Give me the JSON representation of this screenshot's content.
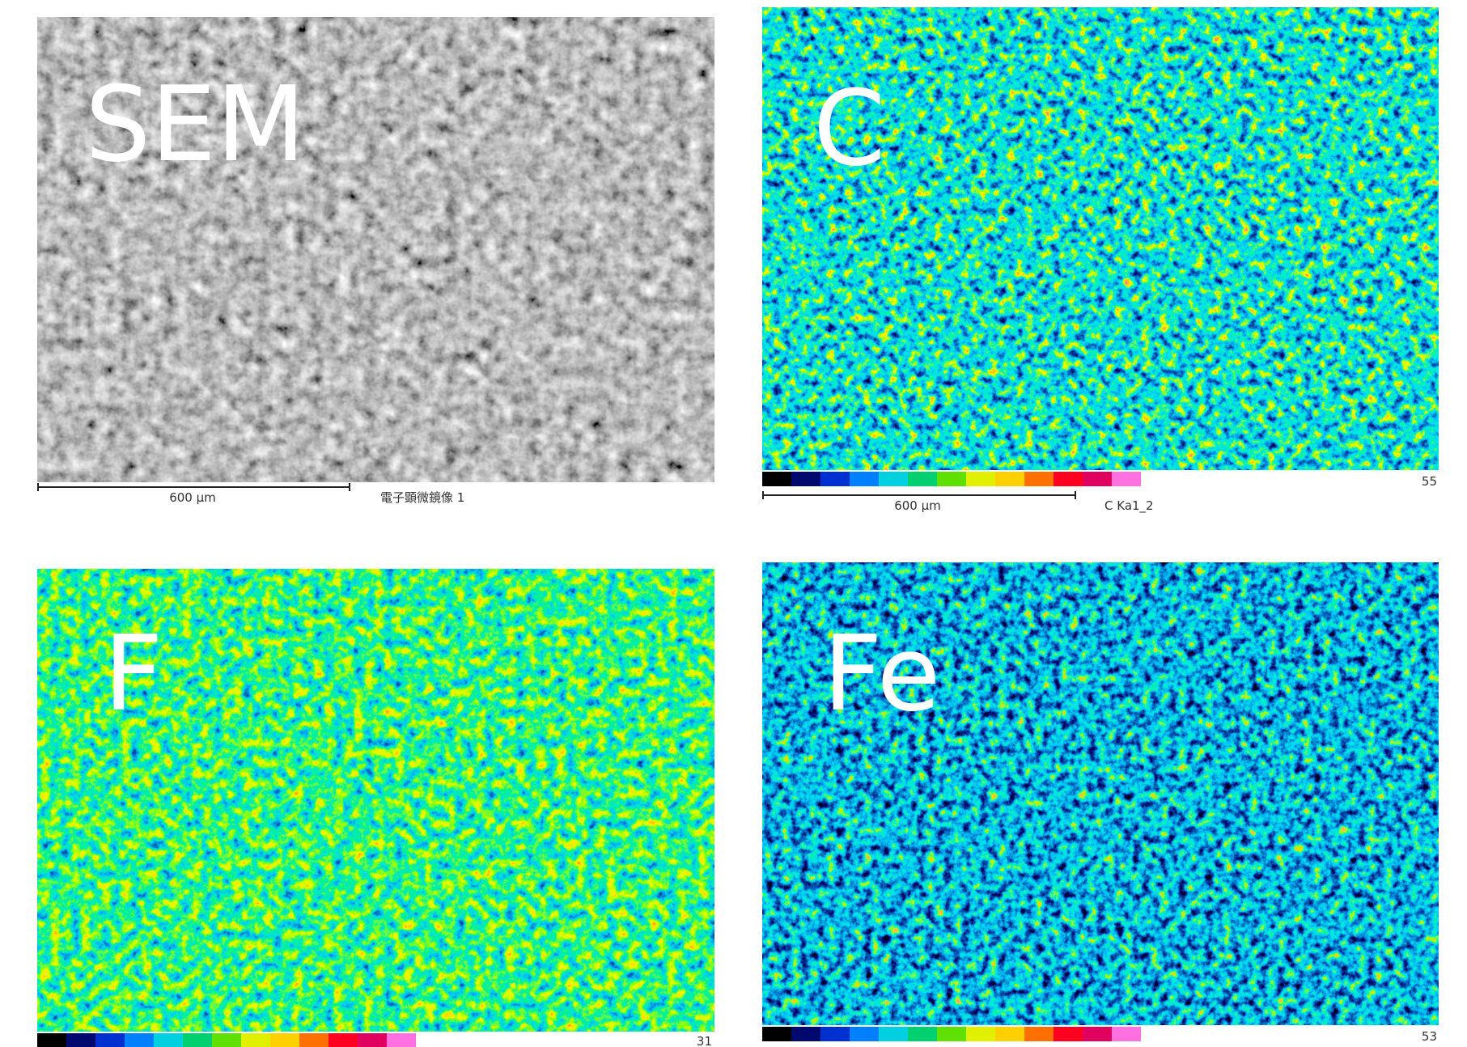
{
  "panels": [
    {
      "label": "SEM",
      "scale_text": "600 μm",
      "caption": "電子顕微鏡像 1"
    },
    {
      "label": "C",
      "scale_text": "600 μm",
      "caption": "C Ka1_2",
      "max": "55"
    },
    {
      "label": "F",
      "max": "31"
    },
    {
      "label": "Fe",
      "max": "53"
    }
  ]
}
